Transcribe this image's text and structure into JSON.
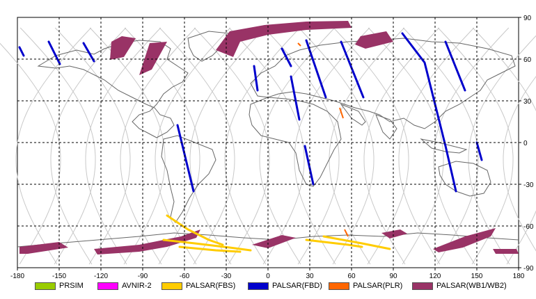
{
  "map": {
    "lon_ticks": [
      "-180",
      "-150",
      "-120",
      "-90",
      "-60",
      "-30",
      "0",
      "30",
      "60",
      "90",
      "120",
      "150",
      "180"
    ],
    "lat_ticks": [
      "90",
      "60",
      "30",
      "0",
      "-30",
      "-60",
      "-90"
    ],
    "lon_range": [
      -180,
      180
    ],
    "lat_range": [
      -90,
      90
    ],
    "grid": true
  },
  "legend": {
    "items": [
      {
        "label": "PRSIM",
        "color": "#99cc00"
      },
      {
        "label": "AVNIR-2",
        "color": "#ff00ff"
      },
      {
        "label": "PALSAR(FBS)",
        "color": "#ffcc00"
      },
      {
        "label": "PALSAR(FBD)",
        "color": "#0000cc"
      },
      {
        "label": "PALSAR(PLR)",
        "color": "#ff6600"
      },
      {
        "label": "PALSAR(WB1/WB2)",
        "color": "#993366"
      }
    ]
  },
  "colors": {
    "track": "#c8c8c8",
    "coast": "#666666",
    "grid": "#000000"
  }
}
